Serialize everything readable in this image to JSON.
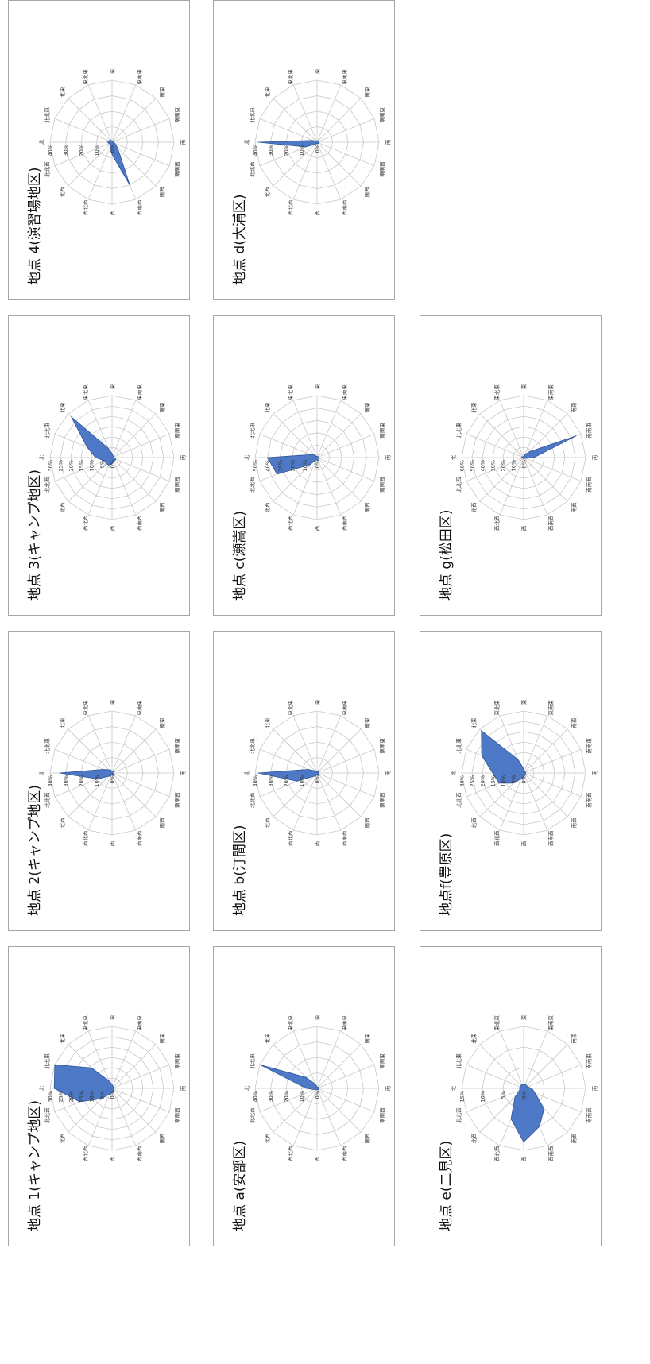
{
  "chart_data": [
    {
      "type": "radar",
      "title": "地点 1(キャンプ地区)",
      "directions": [
        "北",
        "北北東",
        "北東",
        "東北東",
        "東",
        "東南東",
        "南東",
        "南南東",
        "南",
        "南南西",
        "南西",
        "西南西",
        "西",
        "西北西",
        "北西",
        "北北西"
      ],
      "rticks": [
        "0%",
        "5%",
        "10%",
        "15%",
        "20%",
        "25%",
        "30%"
      ],
      "rmax": 30,
      "values": [
        28,
        30,
        14,
        4,
        2,
        1,
        1,
        1,
        1,
        1,
        1,
        2,
        2,
        3,
        7,
        17
      ],
      "color": "#4472c4"
    },
    {
      "type": "radar",
      "title": "地点 2(キャンプ地区)",
      "directions": [
        "北",
        "北北東",
        "北東",
        "東北東",
        "東",
        "東南東",
        "南東",
        "南南東",
        "南",
        "南南西",
        "南西",
        "西南西",
        "西",
        "西北西",
        "北西",
        "北北西"
      ],
      "rticks": [
        "0%",
        "10%",
        "20%",
        "30%",
        "40%"
      ],
      "rmax": 40,
      "values": [
        34,
        6,
        3,
        2,
        1,
        1,
        1,
        0,
        0,
        1,
        1,
        1,
        1,
        2,
        3,
        10
      ],
      "color": "#4472c4"
    },
    {
      "type": "radar",
      "title": "地点 3(キャンプ地区)",
      "directions": [
        "北",
        "北北東",
        "北東",
        "東北東",
        "東",
        "東南東",
        "南東",
        "南南東",
        "南",
        "南南西",
        "南西",
        "西南西",
        "西",
        "西北西",
        "北西",
        "北北西"
      ],
      "rticks": [
        "0%",
        "5%",
        "10%",
        "15%",
        "20%",
        "25%",
        "30%"
      ],
      "rmax": 30,
      "values": [
        8,
        13,
        28,
        5,
        2,
        1,
        1,
        1,
        1,
        2,
        2,
        2,
        3,
        4,
        4,
        4
      ],
      "color": "#4472c4"
    },
    {
      "type": "radar",
      "title": "地点 4(演習場地区)",
      "directions": [
        "北",
        "北北東",
        "北東",
        "東北東",
        "東",
        "東南東",
        "南東",
        "南南東",
        "南",
        "南南西",
        "南西",
        "西南西",
        "西",
        "西北西",
        "北西",
        "北北西"
      ],
      "rticks": [
        "0%",
        "10%",
        "20%",
        "30%",
        "40%"
      ],
      "rmax": 40,
      "values": [
        3,
        2,
        2,
        1,
        1,
        1,
        1,
        1,
        1,
        2,
        5,
        30,
        8,
        3,
        2,
        2
      ],
      "color": "#4472c4"
    },
    {
      "type": "radar",
      "title": "地点 a(安部区)",
      "directions": [
        "北",
        "北北東",
        "北東",
        "東北東",
        "東",
        "東南東",
        "南東",
        "南南東",
        "南",
        "南南西",
        "南西",
        "西南西",
        "西",
        "西北西",
        "北西",
        "北北西"
      ],
      "rticks": [
        "0%",
        "10%",
        "20%",
        "30%",
        "40%"
      ],
      "rmax": 40,
      "values": [
        7,
        40,
        10,
        3,
        1,
        1,
        1,
        1,
        1,
        1,
        1,
        1,
        1,
        1,
        1,
        2
      ],
      "color": "#4472c4"
    },
    {
      "type": "radar",
      "title": "地点 b(汀間区)",
      "directions": [
        "北",
        "北北東",
        "北東",
        "東北東",
        "東",
        "東南東",
        "南東",
        "南南東",
        "南",
        "南南西",
        "南西",
        "西南西",
        "西",
        "西北西",
        "北西",
        "北北西"
      ],
      "rticks": [
        "0%",
        "10%",
        "20%",
        "30%",
        "40%"
      ],
      "rmax": 40,
      "values": [
        38,
        6,
        2,
        1,
        1,
        1,
        1,
        1,
        1,
        1,
        1,
        1,
        1,
        2,
        3,
        14
      ],
      "color": "#4472c4"
    },
    {
      "type": "radar",
      "title": "地点 c(瀬嵩区)",
      "directions": [
        "北",
        "北北東",
        "北東",
        "東北東",
        "東",
        "東南東",
        "南東",
        "南南東",
        "南",
        "南南西",
        "南西",
        "西南西",
        "西",
        "西北西",
        "北西",
        "北北西"
      ],
      "rticks": [
        "0%",
        "10%",
        "20%",
        "30%",
        "40%",
        "50%"
      ],
      "rmax": 50,
      "values": [
        40,
        6,
        3,
        1,
        1,
        1,
        1,
        1,
        1,
        1,
        1,
        2,
        2,
        2,
        8,
        35
      ],
      "color": "#4472c4"
    },
    {
      "type": "radar",
      "title": "地点 d(大浦区)",
      "directions": [
        "北",
        "北北東",
        "北東",
        "東北東",
        "東",
        "東南東",
        "南東",
        "南南東",
        "南",
        "南南西",
        "南西",
        "西南西",
        "西",
        "西北西",
        "北西",
        "北北西"
      ],
      "rticks": [
        "0%",
        "10%",
        "20%",
        "30%",
        "40%"
      ],
      "rmax": 40,
      "values": [
        38,
        3,
        1,
        1,
        1,
        1,
        1,
        1,
        1,
        1,
        1,
        1,
        1,
        1,
        2,
        8
      ],
      "color": "#4472c4"
    },
    {
      "type": "radar",
      "title": "地点 e(二見区)",
      "directions": [
        "北",
        "北北東",
        "北東",
        "東北東",
        "東",
        "東南東",
        "南東",
        "南南東",
        "南",
        "南南西",
        "南西",
        "西南西",
        "西",
        "西北西",
        "北西",
        "北北西"
      ],
      "rticks": [
        "0%",
        "5%",
        "10%",
        "15%"
      ],
      "rmax": 15,
      "values": [
        1,
        1,
        1,
        1,
        1,
        1,
        1,
        1,
        2,
        3,
        7,
        10,
        13,
        8,
        3,
        1
      ],
      "color": "#4472c4"
    },
    {
      "type": "radar",
      "title": "地点f(豊原区)",
      "directions": [
        "北",
        "北北東",
        "北東",
        "東北東",
        "東",
        "東南東",
        "南東",
        "南南東",
        "南",
        "南南西",
        "南西",
        "西南西",
        "西",
        "西北西",
        "北西",
        "北北西"
      ],
      "rticks": [
        "0%",
        "5%",
        "10%",
        "15%",
        "20%",
        "25%",
        "30%"
      ],
      "rmax": 30,
      "values": [
        15,
        22,
        29,
        7,
        2,
        1,
        1,
        1,
        1,
        1,
        1,
        1,
        2,
        3,
        7,
        13
      ],
      "color": "#4472c4"
    },
    {
      "type": "radar",
      "title": "地点 g(松田区)",
      "directions": [
        "北",
        "北北東",
        "北東",
        "東北東",
        "東",
        "東南東",
        "南東",
        "南南東",
        "南",
        "南南西",
        "南西",
        "西南西",
        "西",
        "西北西",
        "北西",
        "北北西"
      ],
      "rticks": [
        "0%",
        "10%",
        "20%",
        "30%",
        "40%",
        "50%",
        "60%"
      ],
      "rmax": 60,
      "values": [
        2,
        2,
        1,
        1,
        1,
        3,
        8,
        55,
        10,
        2,
        1,
        1,
        1,
        1,
        1,
        1
      ],
      "color": "#4472c4"
    }
  ]
}
